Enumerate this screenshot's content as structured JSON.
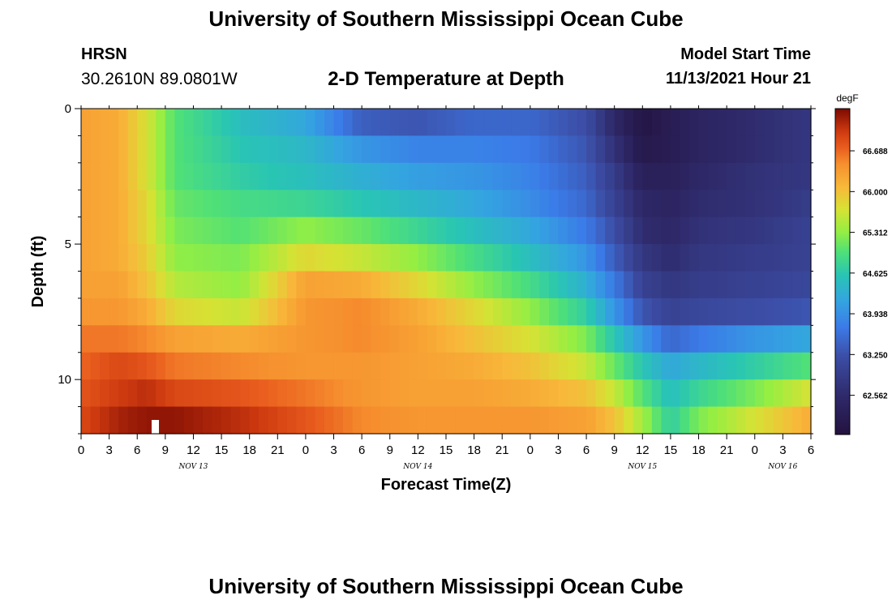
{
  "header": {
    "title": "University of Southern Mississippi Ocean Cube",
    "station": "HRSN",
    "coords": "30.2610N  89.0801W",
    "plot_title": "2-D Temperature at Depth",
    "start_label": "Model Start Time",
    "start_value": "11/13/2021 Hour 21"
  },
  "footer": {
    "title": "University of Southern Mississippi Ocean Cube"
  },
  "chart_data": {
    "type": "heatmap",
    "title": "2-D Temperature at Depth",
    "xlabel": "Forecast Time(Z)",
    "ylabel": "Depth (ft)",
    "x_ticks": [
      "0",
      "3",
      "6",
      "9",
      "12",
      "15",
      "18",
      "21",
      "0",
      "3",
      "6",
      "9",
      "12",
      "15",
      "18",
      "21",
      "0",
      "3",
      "6",
      "9",
      "12",
      "15",
      "18",
      "21",
      "0",
      "3",
      "6"
    ],
    "date_labels": [
      {
        "label": "NOV 13",
        "at_hour": 12
      },
      {
        "label": "NOV 14",
        "at_hour": 36
      },
      {
        "label": "NOV 15",
        "at_hour": 60
      },
      {
        "label": "NOV 16",
        "at_hour": 75
      }
    ],
    "x_range_hours": [
      0,
      78
    ],
    "y_ticks": [
      "0",
      "5",
      "10"
    ],
    "y_range_ft": [
      0,
      12
    ],
    "colorbar": {
      "unit": "degF",
      "range": [
        61.9,
        67.4
      ],
      "tick_labels": [
        "66.688",
        "66.000",
        "65.312",
        "64.625",
        "63.938",
        "63.250",
        "62.562"
      ],
      "tick_values": [
        66.688,
        66.0,
        65.312,
        64.625,
        63.938,
        63.25,
        62.562
      ]
    },
    "depth_levels_ft": [
      0.5,
      1.5,
      2.5,
      3.5,
      4.5,
      5.5,
      6.5,
      7.5,
      8.5,
      9.5,
      10.5,
      11.5
    ],
    "time_keyframes_hours": [
      0,
      4,
      7,
      10,
      17,
      24,
      30,
      36,
      42,
      48,
      54,
      57,
      60,
      63,
      66,
      72,
      78
    ],
    "values_degF": [
      [
        66.3,
        66.2,
        65.7,
        65.0,
        64.5,
        64.2,
        63.4,
        63.3,
        63.5,
        63.5,
        63.2,
        62.5,
        62.0,
        62.2,
        62.4,
        62.6,
        62.8
      ],
      [
        66.3,
        66.2,
        65.7,
        65.0,
        64.6,
        64.4,
        64.0,
        63.8,
        63.8,
        63.7,
        63.3,
        62.7,
        62.1,
        62.2,
        62.4,
        62.6,
        62.8
      ],
      [
        66.3,
        66.2,
        65.7,
        65.0,
        64.7,
        64.5,
        64.3,
        64.1,
        64.0,
        63.8,
        63.4,
        62.9,
        62.3,
        62.3,
        62.5,
        62.7,
        62.8
      ],
      [
        66.3,
        66.2,
        65.8,
        65.1,
        64.9,
        64.8,
        64.6,
        64.4,
        64.2,
        63.9,
        63.5,
        63.0,
        62.5,
        62.4,
        62.6,
        62.7,
        62.9
      ],
      [
        66.3,
        66.2,
        65.8,
        65.2,
        65.0,
        65.3,
        65.1,
        64.8,
        64.5,
        64.2,
        63.7,
        63.2,
        62.6,
        62.5,
        62.7,
        62.8,
        63.0
      ],
      [
        66.3,
        66.2,
        65.9,
        65.3,
        65.2,
        65.8,
        65.6,
        65.3,
        64.9,
        64.5,
        64.0,
        63.4,
        62.8,
        62.6,
        62.8,
        62.9,
        63.0
      ],
      [
        66.3,
        66.3,
        66.0,
        65.5,
        65.3,
        66.3,
        66.2,
        65.8,
        65.3,
        64.9,
        64.3,
        63.7,
        63.0,
        62.8,
        62.9,
        63.0,
        63.1
      ],
      [
        66.4,
        66.4,
        66.2,
        65.8,
        65.6,
        66.4,
        66.5,
        66.2,
        65.8,
        65.3,
        64.7,
        64.0,
        63.3,
        63.0,
        63.1,
        63.2,
        63.3
      ],
      [
        66.6,
        66.6,
        66.5,
        66.3,
        66.2,
        66.4,
        66.5,
        66.3,
        66.0,
        65.7,
        65.2,
        64.6,
        64.0,
        63.5,
        63.7,
        64.0,
        64.2
      ],
      [
        66.7,
        66.9,
        66.8,
        66.6,
        66.5,
        66.4,
        66.4,
        66.3,
        66.2,
        66.0,
        65.6,
        65.1,
        64.6,
        64.2,
        64.4,
        64.7,
        65.0
      ],
      [
        66.8,
        67.0,
        67.1,
        66.9,
        66.8,
        66.6,
        66.4,
        66.3,
        66.3,
        66.2,
        66.0,
        65.6,
        65.0,
        64.5,
        64.8,
        65.2,
        65.7
      ],
      [
        66.9,
        67.2,
        67.3,
        67.3,
        67.1,
        66.8,
        66.5,
        66.4,
        66.4,
        66.4,
        66.3,
        66.0,
        65.4,
        64.7,
        65.2,
        65.7,
        66.2
      ]
    ]
  }
}
